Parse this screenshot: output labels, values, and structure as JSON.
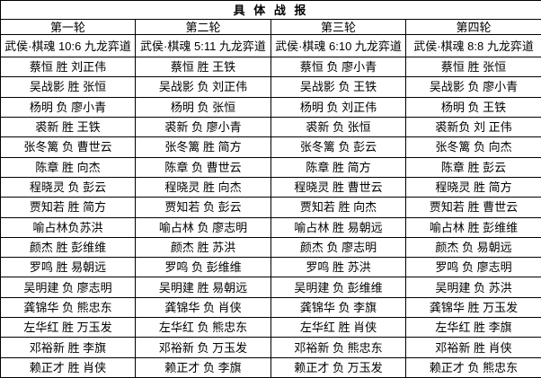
{
  "title": "具  体  战  报",
  "colors": {
    "score_text": "#3a5bc7",
    "border": "#000000",
    "text": "#000000",
    "background": "#ffffff"
  },
  "table": {
    "headers": [
      "第一轮",
      "第二轮",
      "第三轮",
      "第四轮"
    ],
    "scores": [
      "武侯·棋魂 10:6 九龙弈道",
      "武侯·棋魂 5:11 九龙弈道",
      "武侯·棋魂 6:10 九龙弈道",
      "武侯·棋魂 8:8 九龙弈道"
    ],
    "rows": [
      [
        "蔡恒 胜 刘正伟",
        "蔡恒 胜 王铁",
        "蔡恒 负 廖小青",
        "蔡恒 胜 张恒"
      ],
      [
        "吴战影 胜 张恒",
        "吴战影 负 刘正伟",
        "吴战影 负 王铁",
        "吴战影 负 廖小青"
      ],
      [
        "杨明 负 廖小青",
        "杨明 负 张恒",
        "杨明 负 刘正伟",
        "杨明 负 王铁"
      ],
      [
        "裘新 胜 王铁",
        "裘新 负 廖小青",
        "裘新 负 张恒",
        "裘新负 刘 正伟"
      ],
      [
        "张冬篱 负 曹世云",
        "张冬篱 胜 简方",
        "张冬篱 负 彭云",
        "张冬篱 负 向杰"
      ],
      [
        "陈章 胜 向杰",
        "陈章 负 曹世云",
        "陈章 胜 简方",
        "陈章 胜 彭云"
      ],
      [
        "程晓灵 负 彭云",
        "程晓灵 胜 向杰",
        "程晓灵 胜 曹世云",
        "程晓灵 胜 简方"
      ],
      [
        "贾知若 胜 简方",
        "贾知若 负 彭云",
        "贾知若 胜 向杰",
        "贾知若 胜 曹世云"
      ],
      [
        "喻占林负苏洪",
        "喻占林 负 廖志明",
        "喻占林 胜 易朝远",
        "喻占林 胜 彭维维"
      ],
      [
        "颜杰 胜 彭维维",
        "颜杰 胜 苏洪",
        "颜杰 负 廖志明",
        "颜杰 负 易朝远"
      ],
      [
        "罗鸣 胜 易朝远",
        "罗鸣 负 彭维维",
        "罗鸣 胜 苏洪",
        "罗鸣 负 廖志明"
      ],
      [
        "吴明建 负 廖志明",
        "吴明建 胜 易朝远",
        "吴明建 负 彭维维",
        "吴明建 负 苏洪"
      ],
      [
        "龚锦华 负 熊忠东",
        "龚锦华 负 肖侠",
        "龚锦华 负 李旗",
        "龚锦华 胜 万玉发"
      ],
      [
        "左华红 胜 万玉发",
        "左华红 负 熊忠东",
        "左华红 胜 肖侠",
        "左华红 胜 李旗"
      ],
      [
        "邓裕新 胜 李旗",
        "邓裕新 负 万玉发",
        "邓裕新 负 熊忠东",
        "邓裕新 胜 肖侠"
      ],
      [
        "赖正才 胜 肖侠",
        "赖正才 负 李旗",
        "赖正才 负 万玉发",
        "赖正才 负 熊忠东"
      ]
    ]
  }
}
